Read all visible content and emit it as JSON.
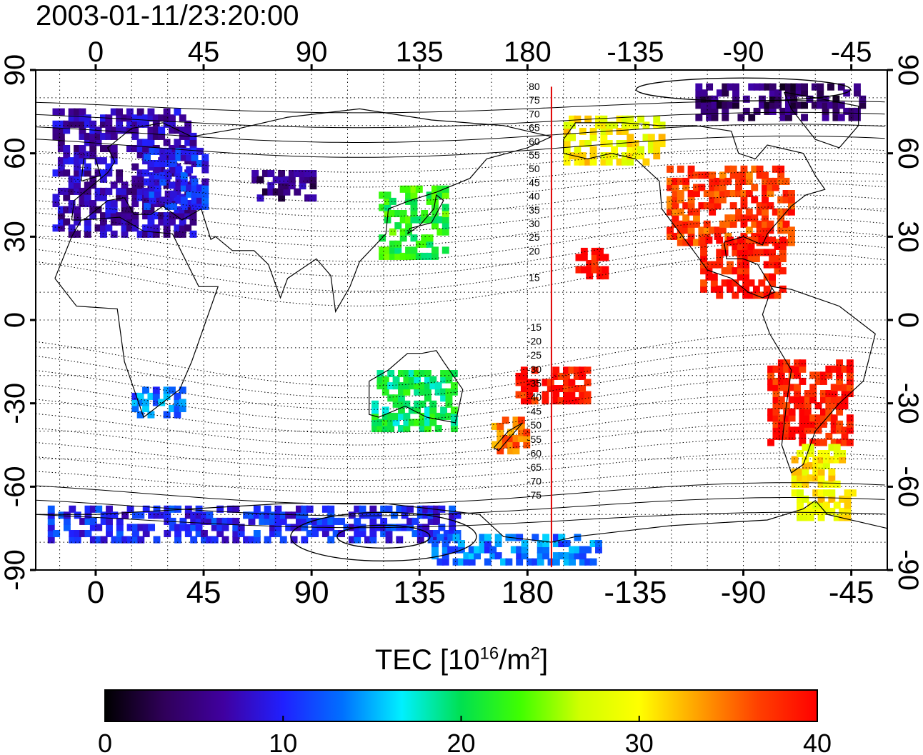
{
  "title": "2003-01-11/23:20:00",
  "map": {
    "x_tick_labels": [
      "0",
      "45",
      "90",
      "135",
      "180",
      "-135",
      "-90",
      "-45"
    ],
    "x_tick_lons": [
      0,
      45,
      90,
      135,
      180,
      225,
      270,
      315
    ],
    "lon_range": [
      -25,
      330
    ],
    "y_tick_labels": [
      "90",
      "60",
      "30",
      "0",
      "-30",
      "-60",
      "-90"
    ],
    "y_tick_lats": [
      90,
      60,
      30,
      0,
      -30,
      -60,
      -90
    ],
    "lat_range": [
      -90,
      90
    ],
    "terminator_lon": 190,
    "terminator_color": "#e00000",
    "contour_labels_north": [
      "80",
      "75",
      "70",
      "65",
      "60",
      "55",
      "50",
      "45",
      "40",
      "35",
      "30",
      "25",
      "20",
      "15"
    ],
    "contour_labels_south": [
      "-15",
      "-20",
      "-25",
      "-30",
      "-35",
      "-40",
      "-45",
      "-50",
      "-55",
      "-60",
      "-65",
      "-70",
      "-75"
    ],
    "grid": "dotted"
  },
  "colorbar": {
    "label_main": "TEC  [10",
    "label_exp1": "16",
    "label_mid": "/m",
    "label_exp2": "2",
    "label_end": "]",
    "min": 0,
    "max": 40,
    "tick_labels": [
      "0",
      "10",
      "20",
      "30",
      "40"
    ],
    "tick_values": [
      0,
      10,
      20,
      30,
      40
    ],
    "colors": [
      "#000000",
      "#30005a",
      "#4000a0",
      "#2020ff",
      "#0070ff",
      "#00f0ff",
      "#00e050",
      "#40ff00",
      "#d0ff00",
      "#ffff00",
      "#ffa000",
      "#ff4000",
      "#ff0000"
    ]
  },
  "tec_regions": [
    {
      "name": "europe",
      "lon": [
        -18,
        40
      ],
      "lat": [
        30,
        75
      ],
      "tec": 7
    },
    {
      "name": "eastern-europe",
      "lon": [
        20,
        45
      ],
      "lat": [
        40,
        60
      ],
      "tec": 10
    },
    {
      "name": "russia-central",
      "lon": [
        65,
        90
      ],
      "lat": [
        43,
        52
      ],
      "tec": 5
    },
    {
      "name": "east-asia",
      "lon": [
        118,
        145
      ],
      "lat": [
        22,
        48
      ],
      "tec": 22
    },
    {
      "name": "north-america",
      "lon": [
        238,
        290
      ],
      "lat": [
        27,
        55
      ],
      "tec": 37
    },
    {
      "name": "alaska",
      "lon": [
        195,
        235
      ],
      "lat": [
        56,
        72
      ],
      "tec": 30
    },
    {
      "name": "arctic-canada",
      "lon": [
        250,
        320
      ],
      "lat": [
        72,
        85
      ],
      "tec": 4
    },
    {
      "name": "central-america",
      "lon": [
        252,
        285
      ],
      "lat": [
        8,
        28
      ],
      "tec": 39
    },
    {
      "name": "south-america",
      "lon": [
        280,
        315
      ],
      "lat": [
        -45,
        -15
      ],
      "tec": 39
    },
    {
      "name": "patagonia",
      "lon": [
        290,
        310
      ],
      "lat": [
        -60,
        -45
      ],
      "tec": 30
    },
    {
      "name": "new-zealand",
      "lon": [
        165,
        180
      ],
      "lat": [
        -48,
        -35
      ],
      "tec": 35
    },
    {
      "name": "pacific-south",
      "lon": [
        175,
        205
      ],
      "lat": [
        -30,
        -18
      ],
      "tec": 39
    },
    {
      "name": "hawaii",
      "lon": [
        200,
        212
      ],
      "lat": [
        15,
        25
      ],
      "tec": 40
    },
    {
      "name": "southern-africa",
      "lon": [
        15,
        35
      ],
      "lat": [
        -35,
        -25
      ],
      "tec": 13
    },
    {
      "name": "australia",
      "lon": [
        115,
        150
      ],
      "lat": [
        -40,
        -20
      ],
      "tec": 20
    },
    {
      "name": "antarctic-coast",
      "lon": [
        -20,
        150
      ],
      "lat": [
        -80,
        -68
      ],
      "tec": 10
    },
    {
      "name": "antarctic-ross",
      "lon": [
        140,
        210
      ],
      "lat": [
        -88,
        -78
      ],
      "tec": 13
    },
    {
      "name": "antarctic-peninsula",
      "lon": [
        290,
        315
      ],
      "lat": [
        -72,
        -62
      ],
      "tec": 30
    }
  ]
}
